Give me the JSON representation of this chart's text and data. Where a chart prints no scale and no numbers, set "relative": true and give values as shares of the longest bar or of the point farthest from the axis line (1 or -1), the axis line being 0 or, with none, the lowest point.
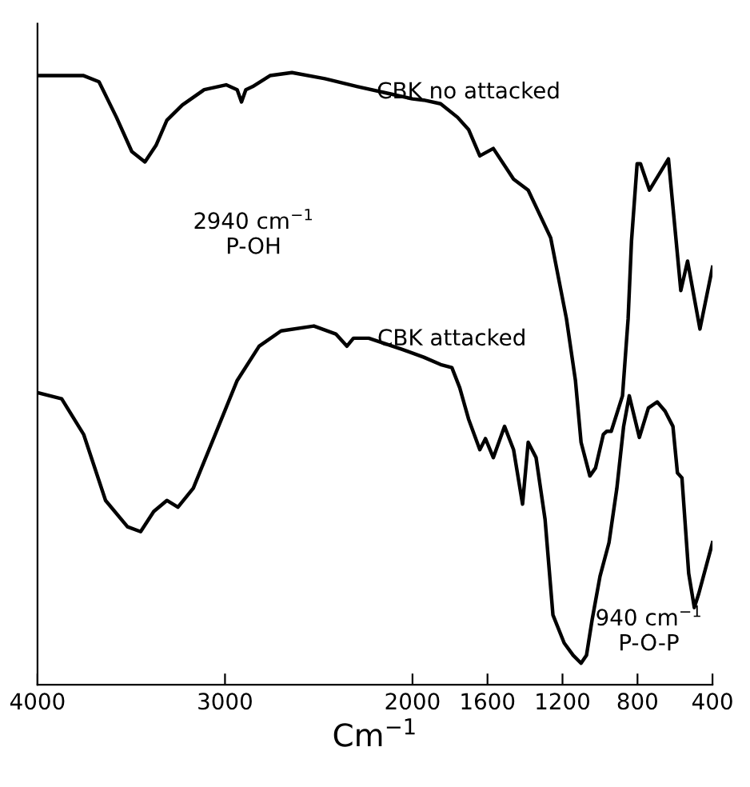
{
  "chart_data": {
    "type": "line",
    "relative": true,
    "xlabel": "Cm$^{−1}$",
    "xlim": [
      4000,
      400
    ],
    "xticks": [
      4000,
      3000,
      2000,
      1600,
      1200,
      800,
      400
    ],
    "grid": false,
    "legend": false,
    "marker": "none",
    "line_style": "solid",
    "annotations": [
      "2940 cm$^{−1}$\nP-OH",
      "940 cm$^{−1}$\nP-O-P"
    ],
    "series": [
      {
        "name": "CBK no attacked",
        "color": "#000000",
        "x": [
          4000,
          3754,
          3672,
          3579,
          3497,
          3427,
          3368,
          3310,
          3228,
          3111,
          2994,
          2935,
          2912,
          2889,
          2853,
          2760,
          2643,
          2467,
          2292,
          2116,
          2000,
          1940,
          1850,
          1760,
          1701,
          1641,
          1569,
          1461,
          1383,
          1263,
          1179,
          1131,
          1101,
          1054,
          1024,
          982,
          964,
          940,
          880,
          850,
          832,
          802,
          784,
          736,
          635,
          569,
          533,
          467,
          400
        ],
        "values": [
          0.995,
          0.995,
          0.985,
          0.927,
          0.871,
          0.854,
          0.881,
          0.922,
          0.947,
          0.972,
          0.98,
          0.972,
          0.952,
          0.972,
          0.977,
          0.995,
          1.0,
          0.99,
          0.977,
          0.965,
          0.957,
          0.955,
          0.949,
          0.927,
          0.907,
          0.864,
          0.876,
          0.826,
          0.808,
          0.73,
          0.598,
          0.497,
          0.396,
          0.341,
          0.354,
          0.409,
          0.414,
          0.414,
          0.472,
          0.598,
          0.725,
          0.851,
          0.851,
          0.808,
          0.859,
          0.644,
          0.692,
          0.581,
          0.682
        ]
      },
      {
        "name": "CBK attacked",
        "color": "#000000",
        "x": [
          4000,
          3871,
          3754,
          3637,
          3520,
          3450,
          3380,
          3310,
          3251,
          3169,
          3052,
          2935,
          2818,
          2701,
          2526,
          2409,
          2350,
          2315,
          2233,
          2058,
          1940,
          1850,
          1790,
          1748,
          1701,
          1641,
          1611,
          1569,
          1509,
          1461,
          1413,
          1383,
          1341,
          1293,
          1251,
          1191,
          1143,
          1101,
          1072,
          1042,
          1000,
          952,
          910,
          874,
          844,
          790,
          742,
          695,
          653,
          611,
          587,
          563,
          527,
          497,
          473,
          400
        ],
        "values": [
          0.477,
          0.467,
          0.409,
          0.301,
          0.258,
          0.25,
          0.283,
          0.301,
          0.29,
          0.321,
          0.409,
          0.497,
          0.553,
          0.578,
          0.586,
          0.573,
          0.553,
          0.566,
          0.566,
          0.548,
          0.535,
          0.523,
          0.518,
          0.485,
          0.434,
          0.384,
          0.402,
          0.371,
          0.422,
          0.384,
          0.295,
          0.396,
          0.371,
          0.27,
          0.114,
          0.068,
          0.048,
          0.035,
          0.048,
          0.106,
          0.177,
          0.232,
          0.321,
          0.422,
          0.472,
          0.404,
          0.452,
          0.462,
          0.447,
          0.422,
          0.346,
          0.338,
          0.182,
          0.126,
          0.149,
          0.232
        ]
      }
    ]
  }
}
